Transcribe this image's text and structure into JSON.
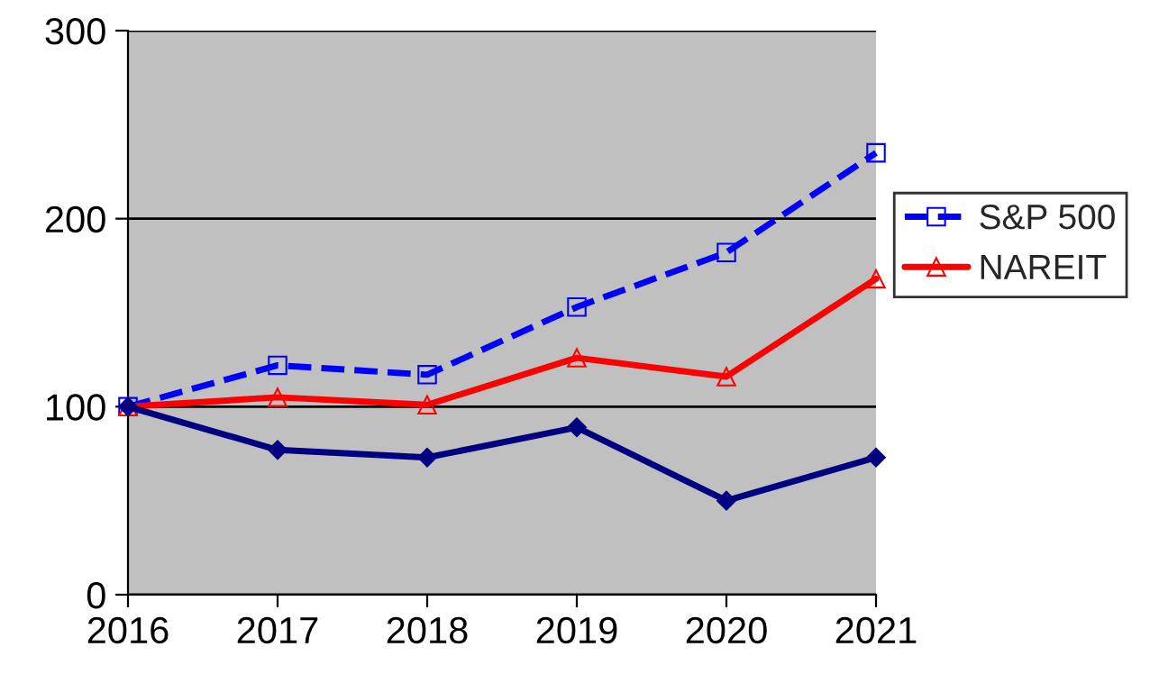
{
  "chart_data": {
    "type": "line",
    "x": [
      2016,
      2017,
      2018,
      2019,
      2020,
      2021
    ],
    "series": [
      {
        "name": "S&P 500",
        "color": "#0000ff",
        "values": [
          100,
          122,
          117,
          153,
          182,
          235
        ],
        "marker": "square",
        "line_style": "dashed"
      },
      {
        "name": "NAREIT",
        "color": "#ff0000",
        "values": [
          100,
          105,
          101,
          126,
          116,
          168
        ],
        "marker": "triangle",
        "line_style": "solid"
      },
      {
        "color": "#000080",
        "values": [
          100,
          77,
          73,
          89,
          50,
          73
        ],
        "marker": "diamond",
        "line_style": "solid"
      }
    ],
    "xlim": [
      2016,
      2021
    ],
    "xticks": [
      2016,
      2017,
      2018,
      2019,
      2020,
      2021
    ],
    "ylim": [
      0,
      300
    ],
    "yticks": [
      0,
      100,
      200,
      300
    ],
    "grid": "y",
    "legend": "right"
  }
}
